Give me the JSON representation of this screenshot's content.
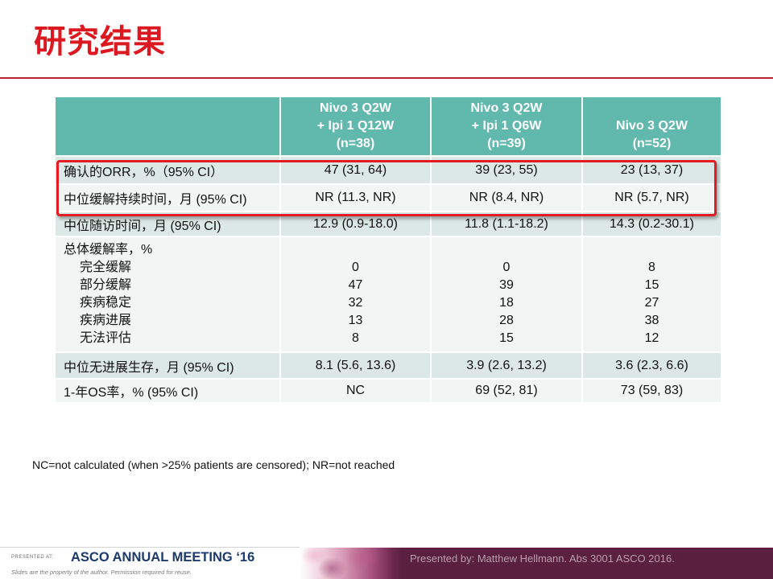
{
  "slide": {
    "title": "研究结果",
    "footnote": "NC=not calculated (when >25% patients are censored); NR=not reached"
  },
  "table": {
    "arms": [
      {
        "lines": [
          "Nivo 3 Q2W",
          "+ Ipi 1 Q12W",
          "(n=38)"
        ]
      },
      {
        "lines": [
          "Nivo 3 Q2W",
          "+ Ipi 1 Q6W",
          "(n=39)"
        ]
      },
      {
        "lines": [
          "Nivo 3 Q2W",
          "(n=52)"
        ]
      }
    ],
    "rows": [
      {
        "label": "确认的ORR，%（95% CI）",
        "values": [
          "47 (31, 64)",
          "39 (23, 55)",
          "23 (13, 37)"
        ]
      },
      {
        "label": "中位缓解持续时间，月 (95% CI)",
        "values": [
          "NR (11.3, NR)",
          "NR (8.4, NR)",
          "NR (5.7, NR)"
        ]
      },
      {
        "label": "中位随访时间，月 (95% CI)",
        "values": [
          "12.9 (0.9-18.0)",
          "11.8 (1.1-18.2)",
          "14.3 (0.2-30.1)"
        ]
      },
      {
        "label": "总体缓解率，%",
        "sublabels": [
          "完全缓解",
          "部分缓解",
          "疾病稳定",
          "疾病进展",
          "无法评估"
        ],
        "subvalues": [
          [
            "0",
            "47",
            "32",
            "13",
            "8"
          ],
          [
            "0",
            "39",
            "18",
            "28",
            "15"
          ],
          [
            "8",
            "15",
            "27",
            "38",
            "12"
          ]
        ]
      },
      {
        "label": "中位无进展生存，月 (95% CI)",
        "values": [
          "8.1 (5.6, 13.6)",
          "3.9 (2.6, 13.2)",
          "3.6 (2.3, 6.6)"
        ]
      },
      {
        "label": "1-年OS率，% (95% CI)",
        "values": [
          "NC",
          "69 (52, 81)",
          "73 (59, 83)"
        ]
      }
    ]
  },
  "footer": {
    "presented_at": "PRESENTED AT:",
    "meeting": "ASCO ANNUAL MEETING ‘16",
    "disclaimer": "Slides are the property of the author. Permission required for reuse.",
    "presenter": "Presented by: Matthew Hellmann. Abs 3001 ASCO 2016."
  },
  "colors": {
    "title": "#dc1820",
    "divider": "#b8282c",
    "header_bg": "#61b8ad",
    "row_shaded": "#dce8e5",
    "row_light": "#f1f5f4",
    "highlight_border": "#e31b23",
    "footer_band": "#5b1f3f",
    "meeting_text": "#1c3a6c",
    "presenter_text": "#b99ead"
  }
}
